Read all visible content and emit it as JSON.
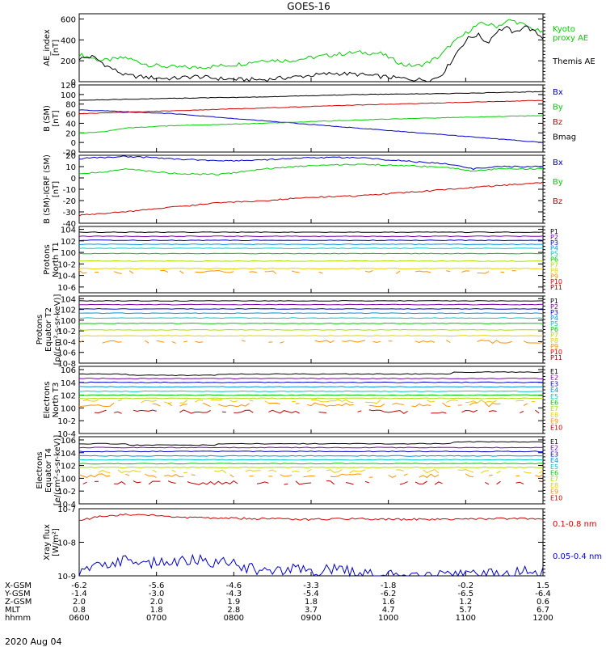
{
  "chart_data": {
    "type": "line",
    "title": "GOES-16",
    "date_label": "2020 Aug 04",
    "x_range": [
      "0600",
      "1200"
    ],
    "panels": [
      {
        "id": "ae",
        "ylabel": [
          "AE_index",
          "[nT]"
        ],
        "scale": "linear",
        "ylim": [
          0,
          650
        ],
        "ticks": [
          "0",
          "200",
          "400",
          "600"
        ],
        "tick_values": [
          0,
          200,
          400,
          600
        ],
        "series": [
          {
            "name": "Kyoto proxy AE",
            "label_lines": [
              "Kyoto",
              "proxy AE"
            ],
            "color": "#00d000",
            "t": [
              0,
              0.05,
              0.1,
              0.15,
              0.2,
              0.25,
              0.3,
              0.35,
              0.4,
              0.45,
              0.5,
              0.55,
              0.6,
              0.65,
              0.7,
              0.73,
              0.75,
              0.78,
              0.8,
              0.83,
              0.85,
              0.87,
              0.9,
              0.93,
              0.95,
              0.97,
              1.0
            ],
            "v": [
              260,
              200,
              230,
              160,
              140,
              135,
              150,
              170,
              210,
              200,
              230,
              260,
              280,
              270,
              160,
              150,
              180,
              250,
              350,
              450,
              520,
              560,
              530,
              590,
              560,
              520,
              470
            ]
          },
          {
            "name": "Themis AE",
            "label_lines": [
              "Themis AE"
            ],
            "color": "#000000",
            "t": [
              0,
              0.03,
              0.06,
              0.1,
              0.15,
              0.2,
              0.25,
              0.3,
              0.35,
              0.4,
              0.45,
              0.5,
              0.55,
              0.6,
              0.65,
              0.7,
              0.73,
              0.76,
              0.78,
              0.8,
              0.82,
              0.84,
              0.86,
              0.88,
              0.9,
              0.92,
              0.94,
              0.96,
              0.98,
              1.0
            ],
            "v": [
              220,
              240,
              150,
              60,
              40,
              30,
              50,
              30,
              20,
              20,
              40,
              60,
              80,
              70,
              50,
              30,
              20,
              20,
              60,
              180,
              320,
              420,
              450,
              370,
              480,
              520,
              460,
              540,
              480,
              420
            ]
          }
        ]
      },
      {
        "id": "b_sm",
        "ylabel": [
          "B (SM)",
          "[nT]"
        ],
        "scale": "linear",
        "ylim": [
          -20,
          120
        ],
        "ticks": [
          "-20",
          "0",
          "20",
          "40",
          "60",
          "80",
          "100",
          "120"
        ],
        "tick_values": [
          -20,
          0,
          20,
          40,
          60,
          80,
          100,
          120
        ],
        "series": [
          {
            "name": "Bx",
            "color": "#0000c8",
            "t": [
              0,
              0.2,
              0.4,
              0.6,
              0.8,
              1.0
            ],
            "v": [
              68,
              60,
              45,
              30,
              15,
              0
            ]
          },
          {
            "name": "By",
            "color": "#00d000",
            "t": [
              0,
              0.05,
              0.1,
              0.2,
              0.4,
              0.6,
              0.8,
              1.0
            ],
            "v": [
              20,
              22,
              30,
              35,
              40,
              47,
              52,
              56
            ]
          },
          {
            "name": "Bz",
            "color": "#d00000",
            "t": [
              0,
              0.2,
              0.4,
              0.6,
              0.8,
              1.0
            ],
            "v": [
              60,
              66,
              72,
              78,
              83,
              88
            ]
          },
          {
            "name": "Bmag",
            "color": "#000000",
            "t": [
              0,
              0.2,
              0.4,
              0.6,
              0.8,
              1.0
            ],
            "v": [
              88,
              92,
              95,
              100,
              102,
              106
            ]
          }
        ]
      },
      {
        "id": "b_igrf",
        "ylabel": [
          "B (SM)-IGRF (SM)",
          "[nT]"
        ],
        "scale": "linear",
        "ylim": [
          -40,
          20
        ],
        "ticks": [
          "-40",
          "-30",
          "-20",
          "-10",
          "0",
          "10",
          "20"
        ],
        "tick_values": [
          -40,
          -30,
          -20,
          -10,
          0,
          10,
          20
        ],
        "series": [
          {
            "name": "Bx",
            "color": "#0000c8",
            "t": [
              0,
              0.1,
              0.2,
              0.3,
              0.4,
              0.5,
              0.6,
              0.7,
              0.8,
              0.85,
              0.9,
              1.0
            ],
            "v": [
              17,
              19,
              17,
              15,
              16,
              18,
              18,
              15,
              12,
              8,
              10,
              10
            ]
          },
          {
            "name": "By",
            "color": "#00d000",
            "t": [
              0,
              0.05,
              0.1,
              0.2,
              0.3,
              0.4,
              0.5,
              0.6,
              0.7,
              0.8,
              0.85,
              0.9,
              1.0
            ],
            "v": [
              4,
              5,
              8,
              4,
              3,
              8,
              11,
              12,
              11,
              9,
              6,
              8,
              8
            ]
          },
          {
            "name": "Bz",
            "color": "#d00000",
            "t": [
              0,
              0.1,
              0.2,
              0.3,
              0.4,
              0.5,
              0.6,
              0.7,
              0.8,
              0.9,
              1.0
            ],
            "v": [
              -33,
              -30,
              -26,
              -22,
              -20,
              -17,
              -16,
              -13,
              -10,
              -7,
              -4
            ]
          }
        ]
      },
      {
        "id": "protons_t1",
        "ylabel": [
          "Protons",
          "North T1"
        ],
        "scale": "log",
        "ylim": [
          -7,
          4.5
        ],
        "ticks": [
          "10-6",
          "10-4",
          "10-2",
          "100",
          "102",
          "104"
        ],
        "tick_values": [
          -6,
          -4,
          -2,
          0,
          2,
          4
        ],
        "channels": [
          {
            "name": "P1",
            "color": "#000000",
            "v": 3.5
          },
          {
            "name": "P2",
            "color": "#7a00a8",
            "v": 2.8
          },
          {
            "name": "P3",
            "color": "#0000c8",
            "v": 2.1
          },
          {
            "name": "P4",
            "color": "#0090e0",
            "v": 1.4
          },
          {
            "name": "P5",
            "color": "#00c8c8",
            "v": 0.7
          },
          {
            "name": "P6",
            "color": "#00c800",
            "v": -0.2
          },
          {
            "name": "P7",
            "color": "#a8e000",
            "v": -1.5
          },
          {
            "name": "P8",
            "color": "#e8d000",
            "v": -2.8
          },
          {
            "name": "P9",
            "color": "#ff9000",
            "v": -3.4
          },
          {
            "name": "P10",
            "color": "#e00000",
            "v": null
          },
          {
            "name": "P11",
            "color": "#900000",
            "v": null
          }
        ]
      },
      {
        "id": "protons_t2",
        "ylabel": [
          "Protons",
          "Equator T2",
          "[p/(cm²-s-sr-keV)]"
        ],
        "scale": "log",
        "ylim": [
          -8,
          4.5
        ],
        "ticks": [
          "10-8",
          "10-6",
          "10-4",
          "10-2",
          "100",
          "102",
          "104"
        ],
        "tick_values": [
          -8,
          -6,
          -4,
          -2,
          0,
          2,
          4
        ],
        "channels": [
          {
            "name": "P1",
            "color": "#000000",
            "v": 3.6
          },
          {
            "name": "P2",
            "color": "#7a00a8",
            "v": 2.9
          },
          {
            "name": "P3",
            "color": "#0000c8",
            "v": 2.1
          },
          {
            "name": "P4",
            "color": "#0090e0",
            "v": 1.3
          },
          {
            "name": "P5",
            "color": "#00c8c8",
            "v": 0.4
          },
          {
            "name": "P6",
            "color": "#00c800",
            "v": -0.6
          },
          {
            "name": "P7",
            "color": "#a8e000",
            "v": -1.8
          },
          {
            "name": "P8",
            "color": "#e8d000",
            "v": -2.9
          },
          {
            "name": "P9",
            "color": "#ff9000",
            "v": -4.0
          },
          {
            "name": "P10",
            "color": "#e00000",
            "v": null
          },
          {
            "name": "P11",
            "color": "#900000",
            "v": null
          }
        ]
      },
      {
        "id": "electrons_t3",
        "ylabel": [
          "Electrons",
          "North T3"
        ],
        "scale": "log",
        "ylim": [
          -4,
          6.5
        ],
        "ticks": [
          "10-4",
          "10-2",
          "100",
          "102",
          "104",
          "106"
        ],
        "tick_values": [
          -4,
          -2,
          0,
          2,
          4,
          6
        ],
        "channels": [
          {
            "name": "E1",
            "color": "#000000",
            "v": 5.3
          },
          {
            "name": "E2",
            "color": "#7a00a8",
            "v": 4.6
          },
          {
            "name": "E3",
            "color": "#0000c8",
            "v": 4.0
          },
          {
            "name": "E4",
            "color": "#0090e0",
            "v": 3.3
          },
          {
            "name": "E5",
            "color": "#00c8c8",
            "v": 2.6
          },
          {
            "name": "E6",
            "color": "#00c800",
            "v": 2.0
          },
          {
            "name": "E7",
            "color": "#a8e000",
            "v": 1.5
          },
          {
            "name": "E8",
            "color": "#e8d000",
            "v": 1.0
          },
          {
            "name": "E9",
            "color": "#ff9000",
            "v": 0.5
          },
          {
            "name": "E10",
            "color": "#c00000",
            "v": -0.6
          }
        ]
      },
      {
        "id": "electrons_t4",
        "ylabel": [
          "Electrons",
          "Equator T4",
          "[e/(cm²-s-sr-keV)]"
        ],
        "scale": "log",
        "ylim": [
          -4,
          6.5
        ],
        "ticks": [
          "10-4",
          "10-2",
          "100",
          "102",
          "104",
          "106"
        ],
        "tick_values": [
          -4,
          -2,
          0,
          2,
          4,
          6
        ],
        "channels": [
          {
            "name": "E1",
            "color": "#000000",
            "v": 5.4
          },
          {
            "name": "E2",
            "color": "#7a00a8",
            "v": 4.8
          },
          {
            "name": "E3",
            "color": "#0000c8",
            "v": 4.2
          },
          {
            "name": "E4",
            "color": "#0090e0",
            "v": 3.5
          },
          {
            "name": "E5",
            "color": "#00c8c8",
            "v": 2.9
          },
          {
            "name": "E6",
            "color": "#00c800",
            "v": 2.3
          },
          {
            "name": "E7",
            "color": "#a8e000",
            "v": 1.7
          },
          {
            "name": "E8",
            "color": "#e8d000",
            "v": 1.1
          },
          {
            "name": "E9",
            "color": "#ff9000",
            "v": 0.4
          },
          {
            "name": "E10",
            "color": "#c00000",
            "v": -0.7
          }
        ]
      },
      {
        "id": "xray",
        "ylabel": [
          "Xray flux",
          "[W/m²]"
        ],
        "scale": "log",
        "ylim": [
          -9,
          -7
        ],
        "ticks": [
          "10-9",
          "10-8",
          "10-7"
        ],
        "tick_values": [
          -9,
          -8,
          -7
        ],
        "series": [
          {
            "name": "0.1-0.8 nm",
            "color": "#d00000",
            "t": [
              0,
              0.05,
              0.1,
              0.15,
              0.2,
              0.3,
              0.4,
              0.5,
              0.6,
              0.7,
              0.8,
              0.9,
              1.0
            ],
            "v": [
              -7.35,
              -7.22,
              -7.18,
              -7.2,
              -7.25,
              -7.28,
              -7.3,
              -7.32,
              -7.3,
              -7.32,
              -7.31,
              -7.3,
              -7.3
            ]
          },
          {
            "name": "0.05-0.4 nm",
            "color": "#0000d0",
            "t": [
              0,
              0.05,
              0.1,
              0.15,
              0.2,
              0.25,
              0.3,
              0.35,
              0.4,
              0.45,
              0.5,
              0.55,
              0.6,
              0.65,
              0.7,
              0.75,
              0.8,
              0.85,
              0.9,
              0.95,
              1.0
            ],
            "v": [
              -8.95,
              -8.7,
              -8.5,
              -8.6,
              -8.55,
              -8.5,
              -8.6,
              -8.7,
              -8.85,
              -8.8,
              -8.9,
              -8.75,
              -8.95,
              -9.0,
              -9.0,
              -9.0,
              -9.0,
              -9.0,
              -8.95,
              -8.9,
              -8.85
            ]
          }
        ]
      }
    ],
    "orbit": {
      "row_labels": [
        "X-GSM",
        "Y-GSM",
        "Z-GSM",
        "MLT",
        "hhmm"
      ],
      "columns": [
        [
          "-6.2",
          "-1.4",
          "2.0",
          "0.8",
          "0600"
        ],
        [
          "-5.6",
          "-3.0",
          "2.0",
          "1.8",
          "0700"
        ],
        [
          "-4.6",
          "-4.3",
          "1.9",
          "2.8",
          "0800"
        ],
        [
          "-3.3",
          "-5.4",
          "1.8",
          "3.7",
          "0900"
        ],
        [
          "-1.8",
          "-6.2",
          "1.6",
          "4.7",
          "1000"
        ],
        [
          "-0.2",
          "-6.5",
          "1.2",
          "5.7",
          "1100"
        ],
        [
          "1.5",
          "-6.4",
          "0.6",
          "6.7",
          "1200"
        ]
      ]
    }
  }
}
